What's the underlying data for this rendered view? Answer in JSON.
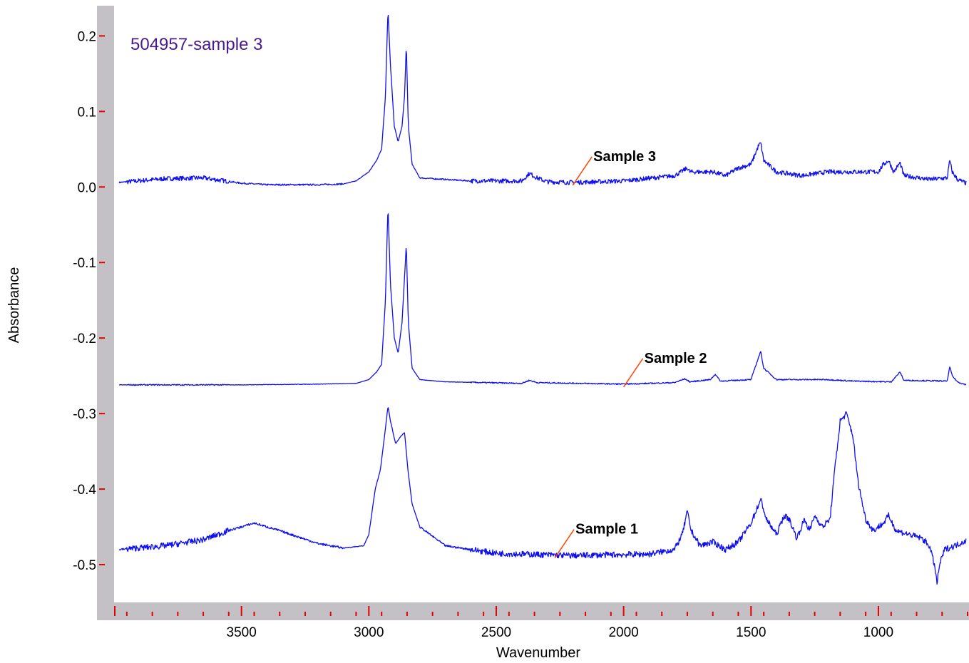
{
  "chart_data": {
    "type": "line",
    "title": "504957-sample 3",
    "xlabel": "Wavenumber",
    "ylabel": "Absorbance",
    "xlim": [
      4000,
      650
    ],
    "ylim": [
      -0.55,
      0.24
    ],
    "x_reversed": true,
    "grid": false,
    "legend": "none",
    "x_ticks": [
      3500,
      3000,
      2500,
      2000,
      1500,
      1000
    ],
    "y_ticks": [
      0.2,
      0.1,
      0.0,
      -0.1,
      -0.2,
      -0.3,
      -0.4,
      -0.5
    ],
    "y_tick_labels": [
      "0.2",
      "0.1",
      "0.0",
      "-0.1",
      "-0.2",
      "-0.3",
      "-0.4",
      "-0.5"
    ],
    "colors": {
      "line": "#1010ee",
      "title": "#4b1a8c",
      "frame": "#c3c1c6",
      "tick": "#e60000",
      "leader": "#ff4500"
    },
    "series": [
      {
        "name": "Sample 3",
        "label_x": 2200,
        "baseline_noise": 0.003,
        "points": [
          [
            3980,
            0.006
          ],
          [
            3800,
            0.011
          ],
          [
            3650,
            0.012
          ],
          [
            3500,
            0.005
          ],
          [
            3400,
            0.003
          ],
          [
            3200,
            0.003
          ],
          [
            3100,
            0.004
          ],
          [
            3050,
            0.008
          ],
          [
            3000,
            0.02
          ],
          [
            2970,
            0.035
          ],
          [
            2950,
            0.05
          ],
          [
            2935,
            0.12
          ],
          [
            2925,
            0.235
          ],
          [
            2915,
            0.16
          ],
          [
            2900,
            0.08
          ],
          [
            2885,
            0.06
          ],
          [
            2870,
            0.08
          ],
          [
            2860,
            0.12
          ],
          [
            2853,
            0.19
          ],
          [
            2845,
            0.08
          ],
          [
            2830,
            0.03
          ],
          [
            2800,
            0.012
          ],
          [
            2700,
            0.01
          ],
          [
            2600,
            0.008
          ],
          [
            2400,
            0.008
          ],
          [
            2370,
            0.018
          ],
          [
            2340,
            0.012
          ],
          [
            2300,
            0.007
          ],
          [
            2200,
            0.006
          ],
          [
            2000,
            0.008
          ],
          [
            1800,
            0.015
          ],
          [
            1750,
            0.025
          ],
          [
            1740,
            0.02
          ],
          [
            1650,
            0.02
          ],
          [
            1600,
            0.015
          ],
          [
            1550,
            0.025
          ],
          [
            1500,
            0.03
          ],
          [
            1470,
            0.055
          ],
          [
            1462,
            0.058
          ],
          [
            1450,
            0.035
          ],
          [
            1400,
            0.02
          ],
          [
            1300,
            0.015
          ],
          [
            1200,
            0.02
          ],
          [
            1100,
            0.02
          ],
          [
            1000,
            0.02
          ],
          [
            980,
            0.03
          ],
          [
            960,
            0.035
          ],
          [
            940,
            0.02
          ],
          [
            915,
            0.032
          ],
          [
            900,
            0.015
          ],
          [
            800,
            0.01
          ],
          [
            730,
            0.012
          ],
          [
            720,
            0.035
          ],
          [
            710,
            0.02
          ],
          [
            690,
            0.01
          ],
          [
            655,
            0.005
          ]
        ]
      },
      {
        "name": "Sample 2",
        "label_x": 2000,
        "baseline_noise": 0.0008,
        "points": [
          [
            3980,
            -0.262
          ],
          [
            3500,
            -0.262
          ],
          [
            3200,
            -0.261
          ],
          [
            3050,
            -0.26
          ],
          [
            3000,
            -0.255
          ],
          [
            2970,
            -0.245
          ],
          [
            2950,
            -0.235
          ],
          [
            2935,
            -0.15
          ],
          [
            2925,
            -0.025
          ],
          [
            2915,
            -0.13
          ],
          [
            2900,
            -0.2
          ],
          [
            2885,
            -0.22
          ],
          [
            2870,
            -0.18
          ],
          [
            2860,
            -0.12
          ],
          [
            2853,
            -0.075
          ],
          [
            2845,
            -0.18
          ],
          [
            2830,
            -0.24
          ],
          [
            2800,
            -0.255
          ],
          [
            2700,
            -0.258
          ],
          [
            2400,
            -0.26
          ],
          [
            2370,
            -0.256
          ],
          [
            2340,
            -0.259
          ],
          [
            2000,
            -0.261
          ],
          [
            1800,
            -0.259
          ],
          [
            1760,
            -0.254
          ],
          [
            1740,
            -0.258
          ],
          [
            1660,
            -0.255
          ],
          [
            1640,
            -0.248
          ],
          [
            1620,
            -0.257
          ],
          [
            1500,
            -0.255
          ],
          [
            1470,
            -0.225
          ],
          [
            1462,
            -0.218
          ],
          [
            1450,
            -0.24
          ],
          [
            1400,
            -0.255
          ],
          [
            1200,
            -0.255
          ],
          [
            1100,
            -0.257
          ],
          [
            950,
            -0.258
          ],
          [
            915,
            -0.245
          ],
          [
            900,
            -0.256
          ],
          [
            730,
            -0.257
          ],
          [
            720,
            -0.238
          ],
          [
            710,
            -0.25
          ],
          [
            690,
            -0.258
          ],
          [
            655,
            -0.262
          ]
        ]
      },
      {
        "name": "Sample 1",
        "label_x": 2270,
        "baseline_noise": 0.004,
        "points": [
          [
            3980,
            -0.48
          ],
          [
            3800,
            -0.475
          ],
          [
            3650,
            -0.467
          ],
          [
            3550,
            -0.455
          ],
          [
            3450,
            -0.445
          ],
          [
            3350,
            -0.455
          ],
          [
            3200,
            -0.472
          ],
          [
            3100,
            -0.478
          ],
          [
            3020,
            -0.475
          ],
          [
            3000,
            -0.46
          ],
          [
            2975,
            -0.4
          ],
          [
            2955,
            -0.375
          ],
          [
            2935,
            -0.32
          ],
          [
            2925,
            -0.29
          ],
          [
            2915,
            -0.31
          ],
          [
            2895,
            -0.34
          ],
          [
            2875,
            -0.33
          ],
          [
            2860,
            -0.325
          ],
          [
            2845,
            -0.38
          ],
          [
            2830,
            -0.42
          ],
          [
            2800,
            -0.45
          ],
          [
            2700,
            -0.475
          ],
          [
            2500,
            -0.485
          ],
          [
            2200,
            -0.488
          ],
          [
            1900,
            -0.486
          ],
          [
            1800,
            -0.48
          ],
          [
            1770,
            -0.46
          ],
          [
            1750,
            -0.43
          ],
          [
            1735,
            -0.455
          ],
          [
            1700,
            -0.475
          ],
          [
            1650,
            -0.47
          ],
          [
            1600,
            -0.48
          ],
          [
            1550,
            -0.47
          ],
          [
            1500,
            -0.445
          ],
          [
            1470,
            -0.42
          ],
          [
            1460,
            -0.415
          ],
          [
            1440,
            -0.44
          ],
          [
            1400,
            -0.46
          ],
          [
            1370,
            -0.435
          ],
          [
            1350,
            -0.44
          ],
          [
            1320,
            -0.465
          ],
          [
            1290,
            -0.44
          ],
          [
            1270,
            -0.455
          ],
          [
            1250,
            -0.435
          ],
          [
            1220,
            -0.45
          ],
          [
            1190,
            -0.44
          ],
          [
            1170,
            -0.37
          ],
          [
            1150,
            -0.31
          ],
          [
            1125,
            -0.3
          ],
          [
            1100,
            -0.33
          ],
          [
            1080,
            -0.39
          ],
          [
            1050,
            -0.44
          ],
          [
            1020,
            -0.455
          ],
          [
            980,
            -0.445
          ],
          [
            960,
            -0.435
          ],
          [
            930,
            -0.455
          ],
          [
            880,
            -0.46
          ],
          [
            830,
            -0.465
          ],
          [
            800,
            -0.475
          ],
          [
            780,
            -0.5
          ],
          [
            770,
            -0.525
          ],
          [
            760,
            -0.5
          ],
          [
            740,
            -0.48
          ],
          [
            700,
            -0.475
          ],
          [
            655,
            -0.468
          ]
        ]
      }
    ]
  }
}
